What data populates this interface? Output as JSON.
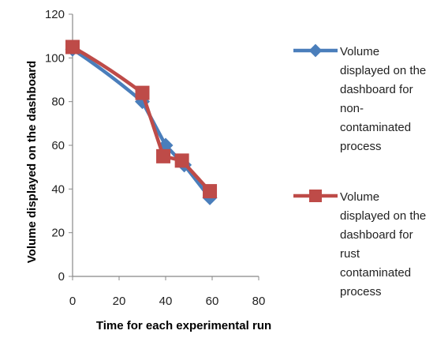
{
  "chart_data": {
    "type": "line",
    "xlabel": "Time for each experimental run",
    "ylabel": "Volume displayed on the dashboard",
    "xlim": [
      0,
      80
    ],
    "ylim": [
      0,
      120
    ],
    "x_ticks": [
      0,
      20,
      40,
      60,
      80
    ],
    "y_ticks": [
      0,
      20,
      40,
      60,
      80,
      100,
      120
    ],
    "grid": false,
    "legend_position": "right",
    "series": [
      {
        "name": "Volume displayed on the dashboard for non-contaminated process",
        "legend_lines": [
          "Volume",
          "displayed on the",
          "dashboard for",
          "non-",
          "contaminated",
          "process"
        ],
        "color": "#4a7ebb",
        "marker": "diamond",
        "points": [
          [
            0,
            104
          ],
          [
            30,
            80
          ],
          [
            40,
            60
          ],
          [
            48,
            51
          ],
          [
            59,
            36
          ]
        ]
      },
      {
        "name": "Volume displayed on the dashboard for rust contaminated process",
        "legend_lines": [
          "Volume",
          "displayed on the",
          "dashboard for",
          "rust",
          "contaminated",
          "process"
        ],
        "color": "#be4b48",
        "marker": "square",
        "points": [
          [
            0,
            105
          ],
          [
            30,
            84
          ],
          [
            39,
            55
          ],
          [
            47,
            53
          ],
          [
            59,
            39
          ]
        ]
      }
    ]
  }
}
